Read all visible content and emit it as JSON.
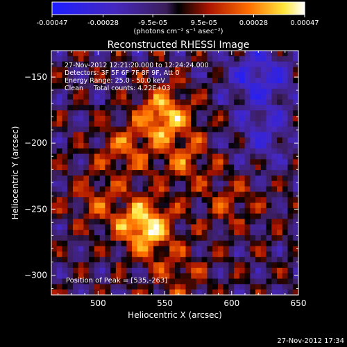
{
  "chart_data": {
    "type": "heatmap",
    "title": "Reconstructed RHESSI Image",
    "xlabel": "Heliocentric X (arcsec)",
    "ylabel": "Heliocentric Y (arcsec)",
    "xlim": [
      465,
      650
    ],
    "ylim": [
      -315,
      -130
    ],
    "x_ticks": [
      500,
      550,
      600,
      650
    ],
    "y_ticks": [
      -150,
      -200,
      -250,
      -300
    ],
    "grid": false,
    "colorbar": {
      "min": -0.00047,
      "max": 0.00047,
      "tick_values": [
        -0.00047,
        -0.00028,
        -9.5e-05,
        9.5e-05,
        0.00028,
        0.00047
      ],
      "tick_labels": [
        "-0.00047",
        "-0.00028",
        "-9.5e-05",
        "9.5e-05",
        "0.00028",
        "0.00047"
      ],
      "unit_label": "(photons cm⁻² s⁻¹ asec⁻²)"
    },
    "info_lines": [
      "27-Nov-2012 12:21:20.000 to 12:24:24.000",
      "Detectors: 3F 5F 6F 7F 8F 9F, Att 0",
      "Energy Range: 25.0 - 50.0 keV",
      "Clean     Total counts: 4.22E+03"
    ],
    "peak_label": "Position of Peak = [535,-263]",
    "peak_position": [
      535,
      -263
    ],
    "sources": [
      {
        "x": 535,
        "y": -263,
        "value": 0.00047
      },
      {
        "x": 550,
        "y": -180,
        "value": 0.0004
      },
      {
        "x": 520,
        "y": -205,
        "value": 0.00022
      },
      {
        "x": 565,
        "y": -215,
        "value": 0.0002
      },
      {
        "x": 500,
        "y": -245,
        "value": 0.00016
      },
      {
        "x": 600,
        "y": -245,
        "value": 0.00014
      },
      {
        "x": 560,
        "y": -300,
        "value": 0.00016
      },
      {
        "x": 620,
        "y": -150,
        "value": -0.00028
      },
      {
        "x": 625,
        "y": -195,
        "value": -0.00018
      }
    ]
  },
  "footer": {
    "timestamp": "27-Nov-2012 17:34"
  }
}
